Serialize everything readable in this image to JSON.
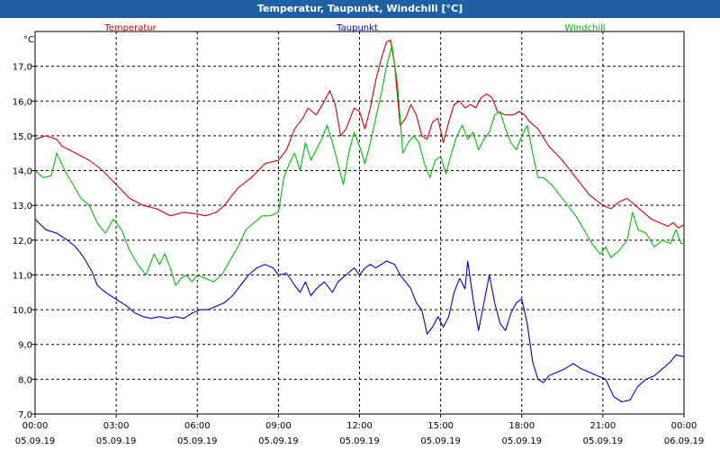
{
  "window": {
    "title": "Temperatur, Taupunkt, Windchill [°C]"
  },
  "chart_data": {
    "type": "line",
    "title": "Temperatur, Taupunkt, Windchill [°C]",
    "ylabel": "°C",
    "xlabel": "",
    "ylim": [
      7.0,
      18.0
    ],
    "xlim": [
      0,
      24
    ],
    "yticks": [
      7.0,
      8.0,
      9.0,
      10.0,
      11.0,
      12.0,
      13.0,
      14.0,
      15.0,
      16.0,
      17.0
    ],
    "ytick_labels": [
      "7,0",
      "8,0",
      "9,0",
      "10,0",
      "11,0",
      "12,0",
      "13,0",
      "14,0",
      "15,0",
      "16,0",
      "17,0"
    ],
    "xticks": [
      {
        "hour": 0,
        "time": "00:00",
        "date": "05.09.19"
      },
      {
        "hour": 3,
        "time": "03:00",
        "date": "05.09.19"
      },
      {
        "hour": 6,
        "time": "06:00",
        "date": "05.09.19"
      },
      {
        "hour": 9,
        "time": "09:00",
        "date": "05.09.19"
      },
      {
        "hour": 12,
        "time": "12:00",
        "date": "05.09.19"
      },
      {
        "hour": 15,
        "time": "15:00",
        "date": "05.09.19"
      },
      {
        "hour": 18,
        "time": "18:00",
        "date": "05.09.19"
      },
      {
        "hour": 21,
        "time": "21:00",
        "date": "05.09.19"
      },
      {
        "hour": 24,
        "time": "00:00",
        "date": "06.09.19"
      }
    ],
    "grid": true,
    "series": [
      {
        "name": "Temperatur",
        "color": "#cc0000",
        "points": [
          [
            0,
            14.9
          ],
          [
            0.4,
            15.0
          ],
          [
            0.8,
            14.9
          ],
          [
            1.0,
            14.7
          ],
          [
            1.5,
            14.5
          ],
          [
            2,
            14.3
          ],
          [
            2.5,
            14.0
          ],
          [
            3,
            13.6
          ],
          [
            3.5,
            13.2
          ],
          [
            4,
            13.0
          ],
          [
            4.5,
            12.9
          ],
          [
            5,
            12.7
          ],
          [
            5.5,
            12.8
          ],
          [
            6,
            12.75
          ],
          [
            6.3,
            12.7
          ],
          [
            6.7,
            12.8
          ],
          [
            7,
            13.0
          ],
          [
            7.5,
            13.5
          ],
          [
            8,
            13.8
          ],
          [
            8.5,
            14.2
          ],
          [
            9,
            14.3
          ],
          [
            9.3,
            14.6
          ],
          [
            9.6,
            15.2
          ],
          [
            9.9,
            15.5
          ],
          [
            10.1,
            15.8
          ],
          [
            10.4,
            15.6
          ],
          [
            10.7,
            16.0
          ],
          [
            10.9,
            16.3
          ],
          [
            11.1,
            15.9
          ],
          [
            11.3,
            15.0
          ],
          [
            11.5,
            15.2
          ],
          [
            11.8,
            15.8
          ],
          [
            12.0,
            15.7
          ],
          [
            12.2,
            15.2
          ],
          [
            12.4,
            15.8
          ],
          [
            12.6,
            16.6
          ],
          [
            12.8,
            17.2
          ],
          [
            13.0,
            17.7
          ],
          [
            13.15,
            17.75
          ],
          [
            13.3,
            17.0
          ],
          [
            13.5,
            15.3
          ],
          [
            13.7,
            15.5
          ],
          [
            13.9,
            15.9
          ],
          [
            14.1,
            15.6
          ],
          [
            14.3,
            15.0
          ],
          [
            14.5,
            14.9
          ],
          [
            14.7,
            15.4
          ],
          [
            14.9,
            15.5
          ],
          [
            15.1,
            14.8
          ],
          [
            15.3,
            15.4
          ],
          [
            15.5,
            15.9
          ],
          [
            15.7,
            16.0
          ],
          [
            15.9,
            15.8
          ],
          [
            16.1,
            15.9
          ],
          [
            16.3,
            15.8
          ],
          [
            16.5,
            16.1
          ],
          [
            16.7,
            16.2
          ],
          [
            16.9,
            16.1
          ],
          [
            17.1,
            15.7
          ],
          [
            17.4,
            15.6
          ],
          [
            17.7,
            15.6
          ],
          [
            17.9,
            15.7
          ],
          [
            18.1,
            15.6
          ],
          [
            18.3,
            15.4
          ],
          [
            18.6,
            15.2
          ],
          [
            19,
            14.7
          ],
          [
            19.5,
            14.3
          ],
          [
            20,
            13.8
          ],
          [
            20.5,
            13.3
          ],
          [
            21,
            13.0
          ],
          [
            21.3,
            12.9
          ],
          [
            21.6,
            13.1
          ],
          [
            21.9,
            13.2
          ],
          [
            22.2,
            13.0
          ],
          [
            22.5,
            12.8
          ],
          [
            22.8,
            12.6
          ],
          [
            23.1,
            12.5
          ],
          [
            23.4,
            12.4
          ],
          [
            23.6,
            12.5
          ],
          [
            23.8,
            12.35
          ],
          [
            24,
            12.45
          ]
        ]
      },
      {
        "name": "Taupunkt",
        "color": "#0000cc",
        "points": [
          [
            0,
            12.6
          ],
          [
            0.4,
            12.3
          ],
          [
            0.8,
            12.2
          ],
          [
            1.2,
            12.0
          ],
          [
            1.5,
            11.8
          ],
          [
            1.8,
            11.5
          ],
          [
            2.1,
            11.1
          ],
          [
            2.3,
            10.7
          ],
          [
            2.6,
            10.5
          ],
          [
            3,
            10.3
          ],
          [
            3.4,
            10.1
          ],
          [
            3.7,
            9.9
          ],
          [
            4,
            9.8
          ],
          [
            4.3,
            9.75
          ],
          [
            4.6,
            9.8
          ],
          [
            4.9,
            9.75
          ],
          [
            5.2,
            9.8
          ],
          [
            5.5,
            9.75
          ],
          [
            5.8,
            9.9
          ],
          [
            6.1,
            10.0
          ],
          [
            6.4,
            10.0
          ],
          [
            6.7,
            10.1
          ],
          [
            7.0,
            10.2
          ],
          [
            7.3,
            10.4
          ],
          [
            7.6,
            10.7
          ],
          [
            7.9,
            11.0
          ],
          [
            8.2,
            11.2
          ],
          [
            8.5,
            11.3
          ],
          [
            8.8,
            11.2
          ],
          [
            9,
            11.0
          ],
          [
            9.3,
            11.05
          ],
          [
            9.6,
            10.7
          ],
          [
            9.8,
            10.5
          ],
          [
            10.0,
            10.8
          ],
          [
            10.2,
            10.4
          ],
          [
            10.4,
            10.6
          ],
          [
            10.7,
            10.8
          ],
          [
            11.0,
            10.5
          ],
          [
            11.2,
            10.8
          ],
          [
            11.5,
            11.0
          ],
          [
            11.8,
            11.2
          ],
          [
            12.0,
            11.0
          ],
          [
            12.2,
            11.2
          ],
          [
            12.4,
            11.3
          ],
          [
            12.6,
            11.2
          ],
          [
            12.8,
            11.3
          ],
          [
            13.0,
            11.4
          ],
          [
            13.3,
            11.3
          ],
          [
            13.5,
            11.0
          ],
          [
            13.7,
            10.8
          ],
          [
            13.9,
            10.6
          ],
          [
            14.1,
            10.2
          ],
          [
            14.3,
            10.0
          ],
          [
            14.5,
            9.3
          ],
          [
            14.7,
            9.5
          ],
          [
            14.9,
            9.8
          ],
          [
            15.1,
            9.5
          ],
          [
            15.3,
            9.8
          ],
          [
            15.5,
            10.5
          ],
          [
            15.7,
            10.9
          ],
          [
            15.9,
            10.6
          ],
          [
            16.0,
            11.4
          ],
          [
            16.2,
            10.3
          ],
          [
            16.4,
            9.4
          ],
          [
            16.6,
            10.2
          ],
          [
            16.8,
            11.0
          ],
          [
            17.0,
            10.2
          ],
          [
            17.2,
            9.6
          ],
          [
            17.4,
            9.4
          ],
          [
            17.6,
            9.9
          ],
          [
            17.8,
            10.2
          ],
          [
            18.0,
            10.3
          ],
          [
            18.2,
            9.6
          ],
          [
            18.4,
            8.5
          ],
          [
            18.6,
            8.0
          ],
          [
            18.8,
            7.9
          ],
          [
            19.0,
            8.1
          ],
          [
            19.3,
            8.2
          ],
          [
            19.6,
            8.3
          ],
          [
            19.9,
            8.45
          ],
          [
            20.2,
            8.3
          ],
          [
            20.5,
            8.2
          ],
          [
            20.8,
            8.1
          ],
          [
            21.1,
            8.0
          ],
          [
            21.4,
            7.5
          ],
          [
            21.7,
            7.35
          ],
          [
            22.0,
            7.4
          ],
          [
            22.3,
            7.8
          ],
          [
            22.6,
            8.0
          ],
          [
            22.9,
            8.1
          ],
          [
            23.2,
            8.3
          ],
          [
            23.5,
            8.5
          ],
          [
            23.7,
            8.7
          ],
          [
            24,
            8.65
          ]
        ]
      },
      {
        "name": "Windchill",
        "color": "#00bb00",
        "points": [
          [
            0,
            14.0
          ],
          [
            0.3,
            13.8
          ],
          [
            0.6,
            13.85
          ],
          [
            0.8,
            14.5
          ],
          [
            1.1,
            14.0
          ],
          [
            1.4,
            13.6
          ],
          [
            1.7,
            13.2
          ],
          [
            2.0,
            13.0
          ],
          [
            2.3,
            12.5
          ],
          [
            2.6,
            12.2
          ],
          [
            2.9,
            12.6
          ],
          [
            3.2,
            12.3
          ],
          [
            3.5,
            11.7
          ],
          [
            3.8,
            11.3
          ],
          [
            4.1,
            11.0
          ],
          [
            4.4,
            11.6
          ],
          [
            4.6,
            11.3
          ],
          [
            4.8,
            11.6
          ],
          [
            5.0,
            11.2
          ],
          [
            5.2,
            10.7
          ],
          [
            5.4,
            10.9
          ],
          [
            5.6,
            11.0
          ],
          [
            5.8,
            10.8
          ],
          [
            6.0,
            11.0
          ],
          [
            6.3,
            10.9
          ],
          [
            6.6,
            10.8
          ],
          [
            6.9,
            11.0
          ],
          [
            7.2,
            11.4
          ],
          [
            7.5,
            11.8
          ],
          [
            7.8,
            12.3
          ],
          [
            8.1,
            12.5
          ],
          [
            8.4,
            12.7
          ],
          [
            8.7,
            12.7
          ],
          [
            9.0,
            12.8
          ],
          [
            9.2,
            13.8
          ],
          [
            9.4,
            14.2
          ],
          [
            9.6,
            14.5
          ],
          [
            9.8,
            14.0
          ],
          [
            10.0,
            14.8
          ],
          [
            10.2,
            14.3
          ],
          [
            10.4,
            14.6
          ],
          [
            10.6,
            14.9
          ],
          [
            10.8,
            15.3
          ],
          [
            11.0,
            14.8
          ],
          [
            11.2,
            14.2
          ],
          [
            11.4,
            13.6
          ],
          [
            11.6,
            14.5
          ],
          [
            11.8,
            15.1
          ],
          [
            12.0,
            14.7
          ],
          [
            12.2,
            14.2
          ],
          [
            12.4,
            14.8
          ],
          [
            12.6,
            15.5
          ],
          [
            12.8,
            16.2
          ],
          [
            13.0,
            17.0
          ],
          [
            13.2,
            17.6
          ],
          [
            13.4,
            16.5
          ],
          [
            13.6,
            14.5
          ],
          [
            13.8,
            14.8
          ],
          [
            14.0,
            15.0
          ],
          [
            14.2,
            14.8
          ],
          [
            14.4,
            14.2
          ],
          [
            14.6,
            13.8
          ],
          [
            14.8,
            14.3
          ],
          [
            15.0,
            14.4
          ],
          [
            15.2,
            13.9
          ],
          [
            15.4,
            14.5
          ],
          [
            15.6,
            15.0
          ],
          [
            15.8,
            15.3
          ],
          [
            16.0,
            14.9
          ],
          [
            16.2,
            15.1
          ],
          [
            16.4,
            14.6
          ],
          [
            16.6,
            14.9
          ],
          [
            16.8,
            15.1
          ],
          [
            17.0,
            15.6
          ],
          [
            17.2,
            15.7
          ],
          [
            17.4,
            15.2
          ],
          [
            17.6,
            14.8
          ],
          [
            17.8,
            14.6
          ],
          [
            18.0,
            15.0
          ],
          [
            18.2,
            15.3
          ],
          [
            18.4,
            14.5
          ],
          [
            18.6,
            13.8
          ],
          [
            18.8,
            13.8
          ],
          [
            19.1,
            13.6
          ],
          [
            19.4,
            13.3
          ],
          [
            19.7,
            13.0
          ],
          [
            20.0,
            12.7
          ],
          [
            20.3,
            12.3
          ],
          [
            20.6,
            11.9
          ],
          [
            20.9,
            11.6
          ],
          [
            21.1,
            11.8
          ],
          [
            21.3,
            11.5
          ],
          [
            21.6,
            11.7
          ],
          [
            21.9,
            12.0
          ],
          [
            22.1,
            12.8
          ],
          [
            22.3,
            12.3
          ],
          [
            22.6,
            12.2
          ],
          [
            22.9,
            11.8
          ],
          [
            23.2,
            12.0
          ],
          [
            23.5,
            11.9
          ],
          [
            23.7,
            12.3
          ],
          [
            23.9,
            11.9
          ],
          [
            24,
            11.9
          ]
        ]
      }
    ]
  }
}
